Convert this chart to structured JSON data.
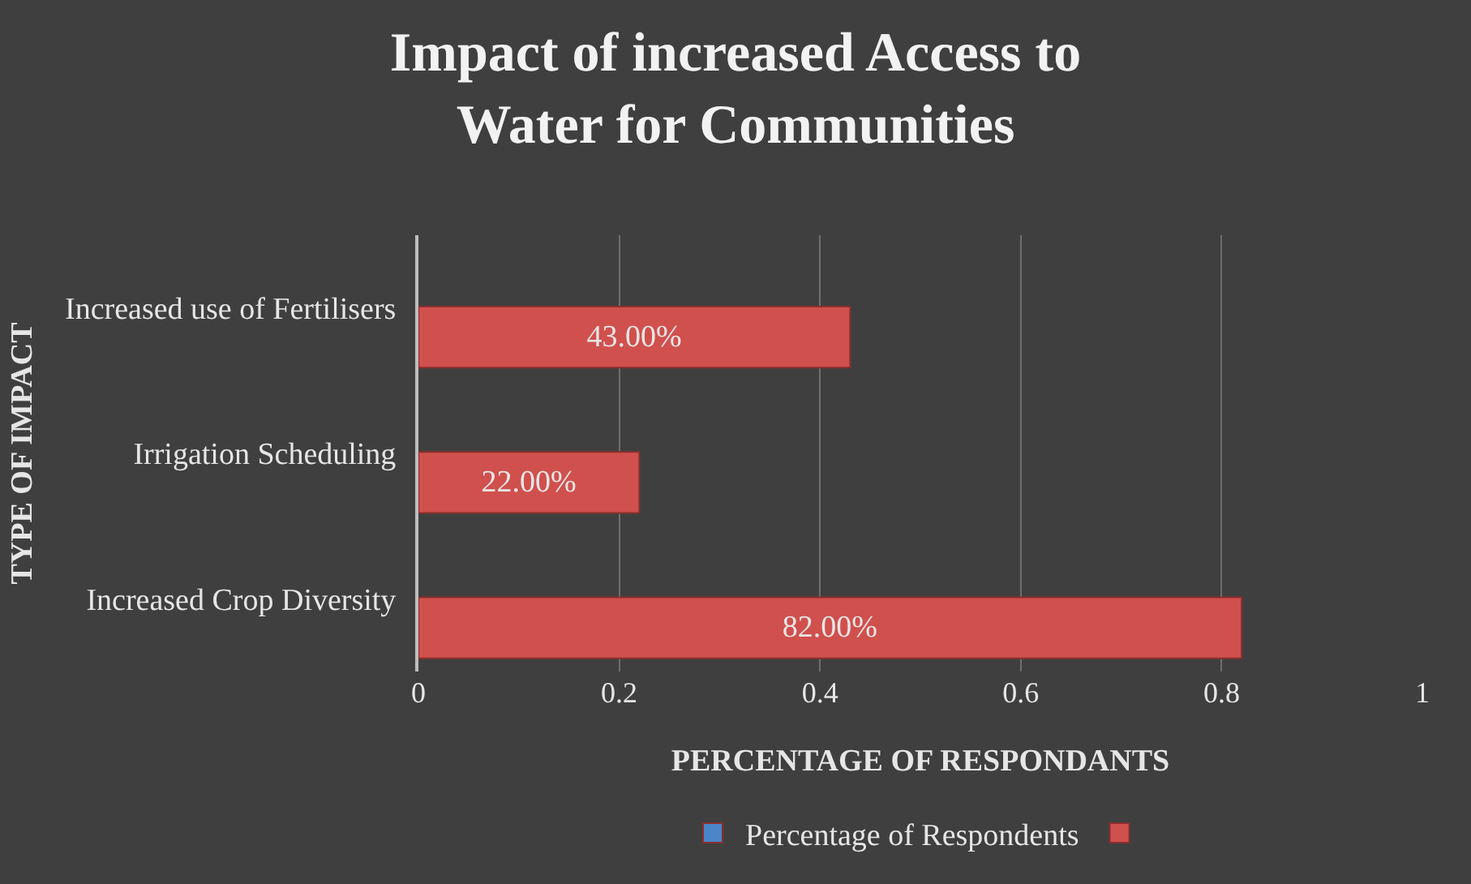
{
  "chart_data": {
    "type": "bar",
    "orientation": "horizontal",
    "title": "Impact of increased Access to Water for Communities",
    "xlabel": "PERCENTAGE OF RESPONDANTS",
    "ylabel": "TYPE OF IMPACT",
    "categories": [
      "Increased use of Fertilisers",
      "Irrigation Scheduling",
      "Increased Crop Diversity"
    ],
    "series": [
      {
        "name": "Percentage of Respondents",
        "color": "#4a86c8",
        "values": [
          null,
          null,
          null
        ]
      },
      {
        "color": "#d0504d",
        "values": [
          0.43,
          0.22,
          0.82
        ],
        "value_labels": [
          "43.00%",
          "22.00%",
          "82.00%"
        ]
      }
    ],
    "xlim": [
      0,
      1
    ],
    "xticks": [
      0,
      0.2,
      0.4,
      0.6,
      0.8,
      1
    ],
    "grid": "x",
    "legend": "bottom"
  }
}
